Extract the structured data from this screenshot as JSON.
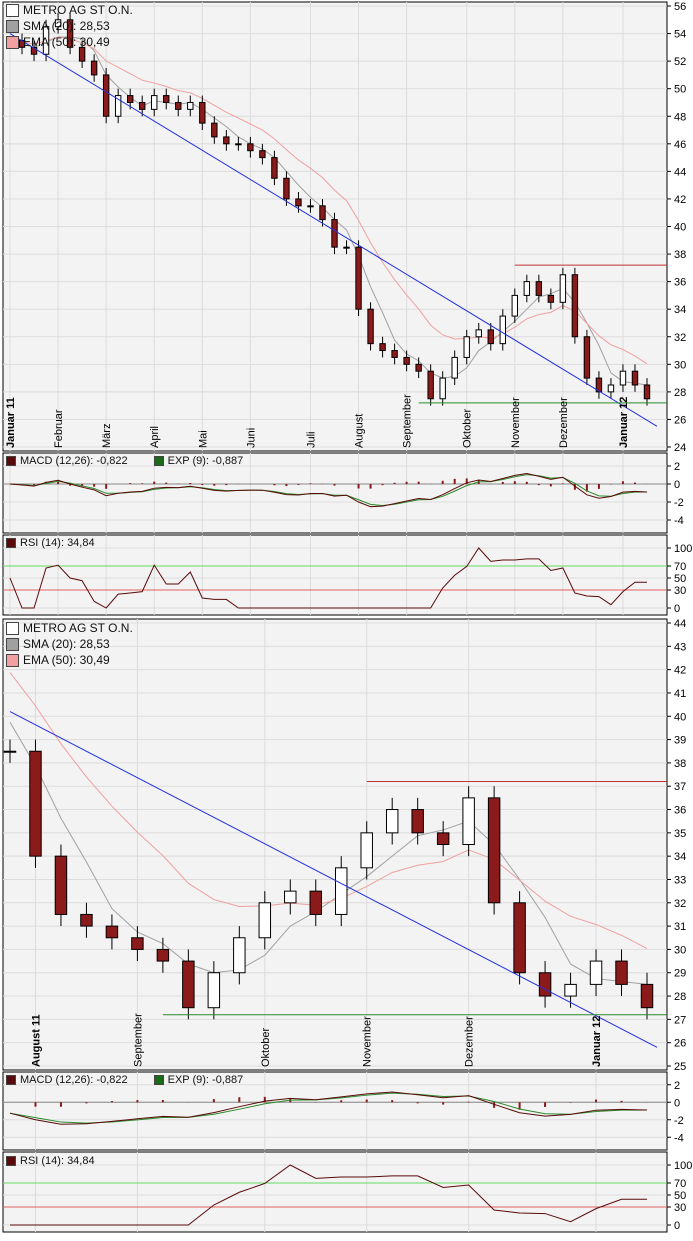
{
  "colors": {
    "up": "#ffffff",
    "down": "#8b1a1a",
    "sma": "#a0a0a0",
    "ema": "#f0a0a0",
    "trend": "#1f2fe0",
    "resist": "#c03030",
    "support": "#2a8a2a",
    "macd": "#5a0a0a",
    "signal": "#2a8a2a",
    "rsi": "#5a0a0a",
    "rsi70": "#66dd66",
    "rsi30": "#e06060"
  },
  "legend": {
    "title": "METRO AG ST O.N.",
    "sma": "SMA (20): 28,53",
    "ema": "EMA (50): 30,49",
    "macd": "MACD (12,26): -0,822",
    "exp": "EXP (9): -0,887",
    "rsi": "RSI (14): 34,84"
  },
  "chart_data": [
    {
      "type": "candlestick",
      "panel": "top",
      "ylim": [
        24,
        56
      ],
      "yticks": [
        24,
        26,
        28,
        30,
        32,
        34,
        36,
        38,
        40,
        42,
        44,
        46,
        48,
        50,
        52,
        54,
        56
      ],
      "closes": [
        53.5,
        53,
        52.5,
        54.5,
        55,
        53,
        52,
        51,
        48,
        49.5,
        49,
        48.5,
        49.5,
        49,
        48.5,
        49,
        47.5,
        46.5,
        46,
        46,
        45.5,
        45,
        43.5,
        42,
        41.5,
        41.5,
        40.5,
        38.5,
        38.5,
        34,
        31.5,
        31,
        30.5,
        30,
        29.5,
        27.5,
        29,
        30.5,
        32,
        32.5,
        31.5,
        33.5,
        35,
        36,
        35,
        34.5,
        36.5,
        32,
        29,
        28,
        28.5,
        29.5,
        28.5,
        27.5
      ],
      "xticks": [
        {
          "label": "Januar 11",
          "index": 0
        },
        {
          "label": "Februar",
          "index": 4
        },
        {
          "label": "März",
          "index": 8
        },
        {
          "label": "April",
          "index": 12
        },
        {
          "label": "Mai",
          "index": 16
        },
        {
          "label": "Juni",
          "index": 20
        },
        {
          "label": "Juli",
          "index": 25
        },
        {
          "label": "August",
          "index": 29
        },
        {
          "label": "September",
          "index": 33
        },
        {
          "label": "Oktober",
          "index": 38
        },
        {
          "label": "November",
          "index": 42
        },
        {
          "label": "Dezember",
          "index": 46
        },
        {
          "label": "Januar 12",
          "index": 51
        }
      ],
      "trendline": [
        54,
        25.5
      ],
      "resistance": {
        "value": 37.2,
        "from_index": 42
      },
      "support": {
        "value": 27.2,
        "from_index": 34
      }
    },
    {
      "type": "candlestick",
      "panel": "bottom",
      "ylim": [
        25,
        44
      ],
      "yticks": [
        25,
        26,
        27,
        28,
        29,
        30,
        31,
        32,
        33,
        34,
        35,
        36,
        37,
        38,
        39,
        40,
        41,
        42,
        43,
        44
      ],
      "start_index": 28,
      "xticks": [
        {
          "label": "August 11",
          "index": 29
        },
        {
          "label": "September",
          "index": 33
        },
        {
          "label": "Oktober",
          "index": 38
        },
        {
          "label": "November",
          "index": 42
        },
        {
          "label": "Dezember",
          "index": 46
        },
        {
          "label": "Januar 12",
          "index": 51
        }
      ],
      "trendline": [
        40.2,
        25.8
      ],
      "resistance": {
        "value": 37.2,
        "from_index": 42
      },
      "support": {
        "value": 27.2,
        "from_index": 34
      }
    }
  ],
  "macd_axis": {
    "ylim": [
      -5,
      3
    ],
    "yticks": [
      -4,
      -2,
      0,
      2
    ]
  },
  "rsi_axis": {
    "ylim": [
      -5,
      115
    ],
    "yticks": [
      0,
      50,
      100
    ],
    "levels": [
      30,
      70
    ]
  }
}
